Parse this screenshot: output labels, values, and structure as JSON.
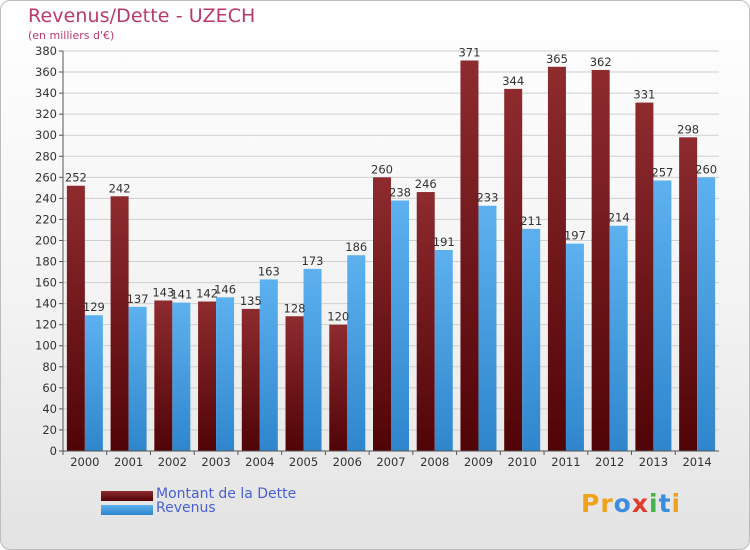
{
  "title": "Revenus/Dette - UZECH",
  "subtitle": "(en milliers d'€)",
  "logo": {
    "letters": [
      "P",
      "r",
      "o",
      "x",
      "i",
      "t",
      "i"
    ],
    "colors": [
      "#f0a21b",
      "#f0a21b",
      "#3c8de0",
      "#e23b2e",
      "#44b348",
      "#3c8de0",
      "#f0a21b"
    ]
  },
  "colors": {
    "dette": "#6b1015",
    "revenus": "#4aa3e6",
    "title": "#b83a6d",
    "legend_text": "#4a5fd6"
  },
  "chart_data": {
    "type": "bar",
    "title": "Revenus/Dette - UZECH",
    "ylabel": "(en milliers d'€)",
    "xlabel": "",
    "ylim": [
      0,
      380
    ],
    "ytick_step": 20,
    "grid": true,
    "legend_placement": "bottom-left",
    "categories": [
      "2000",
      "2001",
      "2002",
      "2003",
      "2004",
      "2005",
      "2006",
      "2007",
      "2008",
      "2009",
      "2010",
      "2011",
      "2012",
      "2013",
      "2014"
    ],
    "series": [
      {
        "name": "Montant de la Dette",
        "color": "#6b1015",
        "values": [
          252,
          242,
          143,
          142,
          135,
          128,
          120,
          260,
          246,
          371,
          344,
          365,
          362,
          331,
          298
        ]
      },
      {
        "name": "Revenus",
        "color": "#4aa3e6",
        "values": [
          129,
          137,
          141,
          146,
          163,
          173,
          186,
          238,
          191,
          233,
          211,
          197,
          214,
          257,
          260
        ]
      }
    ]
  }
}
